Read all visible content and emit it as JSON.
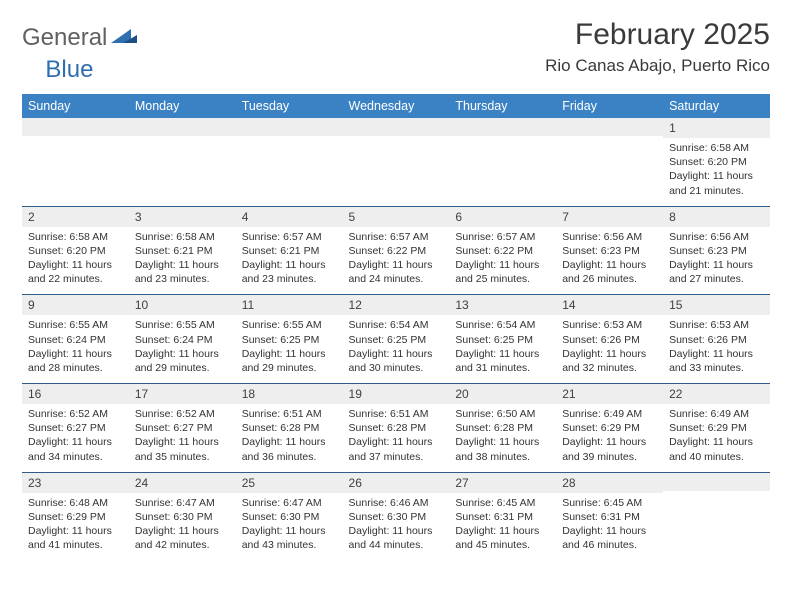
{
  "brand": {
    "general": "General",
    "blue": "Blue"
  },
  "title": "February 2025",
  "location": "Rio Canas Abajo, Puerto Rico",
  "colors": {
    "header_bg": "#3b82c4",
    "header_text": "#ffffff",
    "row_divider": "#2f5a8a",
    "daynum_bg": "#eeeeee",
    "text": "#333333",
    "logo_gray": "#606060",
    "logo_blue": "#2f6fb0",
    "background": "#ffffff"
  },
  "typography": {
    "title_fontsize": 30,
    "location_fontsize": 17,
    "weekday_fontsize": 12.5,
    "daynum_fontsize": 12,
    "body_fontsize": 10.5
  },
  "weekdays": [
    "Sunday",
    "Monday",
    "Tuesday",
    "Wednesday",
    "Thursday",
    "Friday",
    "Saturday"
  ],
  "weeks": [
    [
      null,
      null,
      null,
      null,
      null,
      null,
      {
        "n": "1",
        "sunrise": "Sunrise: 6:58 AM",
        "sunset": "Sunset: 6:20 PM",
        "daylight": "Daylight: 11 hours and 21 minutes."
      }
    ],
    [
      {
        "n": "2",
        "sunrise": "Sunrise: 6:58 AM",
        "sunset": "Sunset: 6:20 PM",
        "daylight": "Daylight: 11 hours and 22 minutes."
      },
      {
        "n": "3",
        "sunrise": "Sunrise: 6:58 AM",
        "sunset": "Sunset: 6:21 PM",
        "daylight": "Daylight: 11 hours and 23 minutes."
      },
      {
        "n": "4",
        "sunrise": "Sunrise: 6:57 AM",
        "sunset": "Sunset: 6:21 PM",
        "daylight": "Daylight: 11 hours and 23 minutes."
      },
      {
        "n": "5",
        "sunrise": "Sunrise: 6:57 AM",
        "sunset": "Sunset: 6:22 PM",
        "daylight": "Daylight: 11 hours and 24 minutes."
      },
      {
        "n": "6",
        "sunrise": "Sunrise: 6:57 AM",
        "sunset": "Sunset: 6:22 PM",
        "daylight": "Daylight: 11 hours and 25 minutes."
      },
      {
        "n": "7",
        "sunrise": "Sunrise: 6:56 AM",
        "sunset": "Sunset: 6:23 PM",
        "daylight": "Daylight: 11 hours and 26 minutes."
      },
      {
        "n": "8",
        "sunrise": "Sunrise: 6:56 AM",
        "sunset": "Sunset: 6:23 PM",
        "daylight": "Daylight: 11 hours and 27 minutes."
      }
    ],
    [
      {
        "n": "9",
        "sunrise": "Sunrise: 6:55 AM",
        "sunset": "Sunset: 6:24 PM",
        "daylight": "Daylight: 11 hours and 28 minutes."
      },
      {
        "n": "10",
        "sunrise": "Sunrise: 6:55 AM",
        "sunset": "Sunset: 6:24 PM",
        "daylight": "Daylight: 11 hours and 29 minutes."
      },
      {
        "n": "11",
        "sunrise": "Sunrise: 6:55 AM",
        "sunset": "Sunset: 6:25 PM",
        "daylight": "Daylight: 11 hours and 29 minutes."
      },
      {
        "n": "12",
        "sunrise": "Sunrise: 6:54 AM",
        "sunset": "Sunset: 6:25 PM",
        "daylight": "Daylight: 11 hours and 30 minutes."
      },
      {
        "n": "13",
        "sunrise": "Sunrise: 6:54 AM",
        "sunset": "Sunset: 6:25 PM",
        "daylight": "Daylight: 11 hours and 31 minutes."
      },
      {
        "n": "14",
        "sunrise": "Sunrise: 6:53 AM",
        "sunset": "Sunset: 6:26 PM",
        "daylight": "Daylight: 11 hours and 32 minutes."
      },
      {
        "n": "15",
        "sunrise": "Sunrise: 6:53 AM",
        "sunset": "Sunset: 6:26 PM",
        "daylight": "Daylight: 11 hours and 33 minutes."
      }
    ],
    [
      {
        "n": "16",
        "sunrise": "Sunrise: 6:52 AM",
        "sunset": "Sunset: 6:27 PM",
        "daylight": "Daylight: 11 hours and 34 minutes."
      },
      {
        "n": "17",
        "sunrise": "Sunrise: 6:52 AM",
        "sunset": "Sunset: 6:27 PM",
        "daylight": "Daylight: 11 hours and 35 minutes."
      },
      {
        "n": "18",
        "sunrise": "Sunrise: 6:51 AM",
        "sunset": "Sunset: 6:28 PM",
        "daylight": "Daylight: 11 hours and 36 minutes."
      },
      {
        "n": "19",
        "sunrise": "Sunrise: 6:51 AM",
        "sunset": "Sunset: 6:28 PM",
        "daylight": "Daylight: 11 hours and 37 minutes."
      },
      {
        "n": "20",
        "sunrise": "Sunrise: 6:50 AM",
        "sunset": "Sunset: 6:28 PM",
        "daylight": "Daylight: 11 hours and 38 minutes."
      },
      {
        "n": "21",
        "sunrise": "Sunrise: 6:49 AM",
        "sunset": "Sunset: 6:29 PM",
        "daylight": "Daylight: 11 hours and 39 minutes."
      },
      {
        "n": "22",
        "sunrise": "Sunrise: 6:49 AM",
        "sunset": "Sunset: 6:29 PM",
        "daylight": "Daylight: 11 hours and 40 minutes."
      }
    ],
    [
      {
        "n": "23",
        "sunrise": "Sunrise: 6:48 AM",
        "sunset": "Sunset: 6:29 PM",
        "daylight": "Daylight: 11 hours and 41 minutes."
      },
      {
        "n": "24",
        "sunrise": "Sunrise: 6:47 AM",
        "sunset": "Sunset: 6:30 PM",
        "daylight": "Daylight: 11 hours and 42 minutes."
      },
      {
        "n": "25",
        "sunrise": "Sunrise: 6:47 AM",
        "sunset": "Sunset: 6:30 PM",
        "daylight": "Daylight: 11 hours and 43 minutes."
      },
      {
        "n": "26",
        "sunrise": "Sunrise: 6:46 AM",
        "sunset": "Sunset: 6:30 PM",
        "daylight": "Daylight: 11 hours and 44 minutes."
      },
      {
        "n": "27",
        "sunrise": "Sunrise: 6:45 AM",
        "sunset": "Sunset: 6:31 PM",
        "daylight": "Daylight: 11 hours and 45 minutes."
      },
      {
        "n": "28",
        "sunrise": "Sunrise: 6:45 AM",
        "sunset": "Sunset: 6:31 PM",
        "daylight": "Daylight: 11 hours and 46 minutes."
      },
      null
    ]
  ]
}
